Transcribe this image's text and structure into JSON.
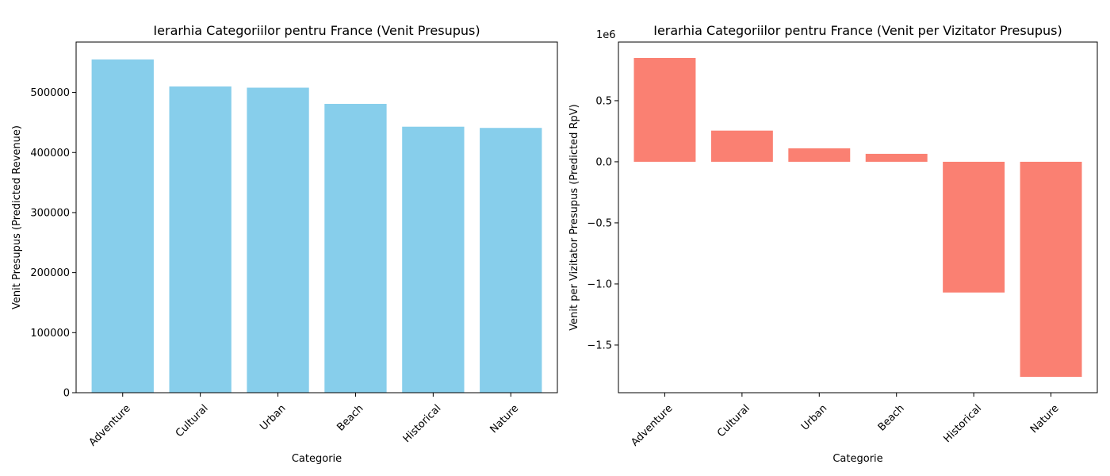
{
  "chart_data": [
    {
      "type": "bar",
      "title": "Ierarhia Categoriilor pentru France (Venit Presupus)",
      "xlabel": "Categorie",
      "ylabel": "Venit Presupus (Predicted Revenue)",
      "categories": [
        "Adventure",
        "Cultural",
        "Urban",
        "Beach",
        "Historical",
        "Nature"
      ],
      "values": [
        555000,
        510000,
        508000,
        481000,
        443000,
        441000
      ],
      "ylim": [
        0,
        584000
      ],
      "yticks": [
        0,
        100000,
        200000,
        300000,
        400000,
        500000
      ],
      "ytick_labels": [
        "0",
        "100000",
        "200000",
        "300000",
        "400000",
        "500000"
      ],
      "color": "#87ceeb",
      "grid": false,
      "legend": false
    },
    {
      "type": "bar",
      "title": "Ierarhia Categoriilor pentru France (Venit per Vizitator Presupus)",
      "xlabel": "Categorie",
      "ylabel": "Venit per Vizitator Presupus (Predicted RpV)",
      "y_offset_label": "1e6",
      "categories": [
        "Adventure",
        "Cultural",
        "Urban",
        "Beach",
        "Historical",
        "Nature"
      ],
      "values": [
        850000,
        255000,
        110000,
        65000,
        -1070000,
        -1760000
      ],
      "ylim": [
        -1890000,
        980000
      ],
      "yticks": [
        -1500000,
        -1000000,
        -500000,
        0,
        500000
      ],
      "ytick_labels": [
        "−1.5",
        "−1.0",
        "−0.5",
        "0.0",
        "0.5"
      ],
      "color": "#fa8072",
      "grid": false,
      "legend": false
    }
  ]
}
